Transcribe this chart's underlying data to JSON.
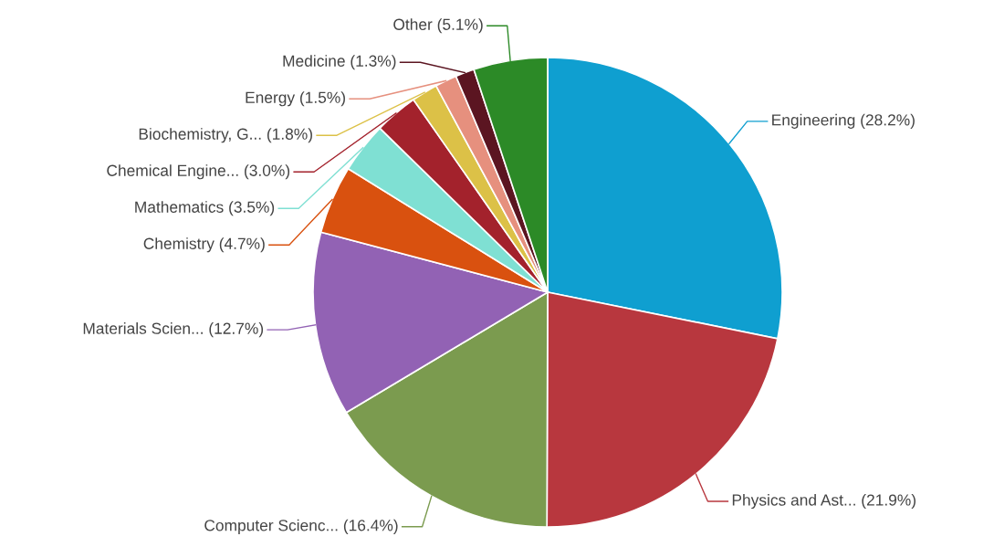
{
  "chart_data": {
    "type": "pie",
    "categories": [
      "Engineering",
      "Physics and Ast...",
      "Computer Scienc...",
      "Materials Scien...",
      "Chemistry",
      "Mathematics",
      "Chemical Engine...",
      "Biochemistry, G...",
      "Energy",
      "Medicine",
      "Other"
    ],
    "values": [
      28.2,
      21.9,
      16.4,
      12.7,
      4.7,
      3.5,
      3.0,
      1.8,
      1.5,
      1.3,
      5.1
    ],
    "value_labels": [
      "(28.2%)",
      "(21.9%)",
      "(16.4%)",
      "(12.7%)",
      "(4.7%)",
      "(3.5%)",
      "(3.0%)",
      "(1.8%)",
      "(1.5%)",
      "(1.3%)",
      "(5.1%)"
    ],
    "colors": [
      "#0f9fd0",
      "#b8373e",
      "#7b9b4f",
      "#9262b4",
      "#d9510f",
      "#7fe0d3",
      "#a3222c",
      "#dcc147",
      "#e6907e",
      "#5b1521",
      "#2c8a27"
    ],
    "legend": false
  }
}
